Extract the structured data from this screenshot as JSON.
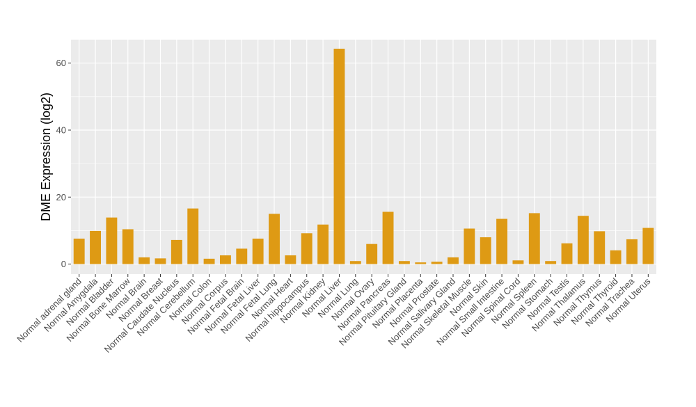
{
  "chart_data": {
    "type": "bar",
    "ylabel": "DME Expression (log2)",
    "xlabel": "",
    "title": "",
    "ylim": [
      -3,
      67
    ],
    "yticks": [
      0,
      20,
      40,
      60
    ],
    "grid": true,
    "bar_color": "#DE9A14",
    "panel_color": "#EBEBEB",
    "grid_color": "#FFFFFF",
    "categories": [
      "Normal adrenal gland",
      "Normal Amygdala",
      "Normal Bladder",
      "Normal Bone Marrow",
      "Normal Brain",
      "Normal Breast",
      "Normal Caudate Nucleus",
      "Normal Cerebellum",
      "Normal Colon",
      "Normal Corpus",
      "Normal Fetal Brain",
      "Normal Fetal Liver",
      "Normal Fetal Lung",
      "Normal Heart",
      "Normal hippocampus",
      "Normal Kidney",
      "Normal Liver",
      "Normal Lung",
      "Normal Ovary",
      "Normal Pancreas",
      "Normal Pituitary Gland",
      "Normal Placenta",
      "Normal Prostate",
      "Normal Salivary Gland",
      "Normal Skeletal Muscle",
      "Normal Skin",
      "Normal Small Intestine",
      "Normal Spinal Cord",
      "Normal Spleen",
      "Normal Stomach",
      "Normal Testis",
      "Normal Thalamus",
      "Normal Thymus",
      "Normal Thyroid",
      "Normal Trachea",
      "Normal Uterus"
    ],
    "values": [
      7.6,
      9.9,
      13.9,
      10.4,
      2.0,
      1.7,
      7.2,
      16.6,
      1.6,
      2.6,
      4.6,
      7.6,
      15.0,
      2.6,
      9.2,
      11.8,
      64.3,
      0.9,
      6.0,
      15.6,
      0.9,
      0.5,
      0.7,
      2.0,
      10.6,
      8.0,
      13.5,
      1.1,
      15.2,
      0.9,
      6.2,
      14.4,
      9.8,
      4.1,
      7.4,
      10.8
    ]
  }
}
